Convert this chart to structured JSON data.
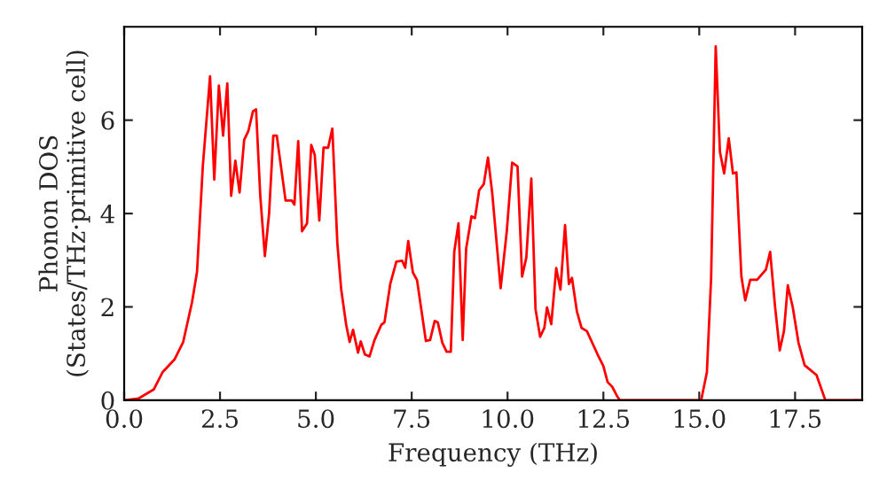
{
  "chart_data": {
    "type": "line",
    "xlabel": "Frequency (THz)",
    "ylabel": "Phonon DOS\n(States/THz·primitive cell)",
    "xlim": [
      0,
      19.25
    ],
    "ylim": [
      0,
      8
    ],
    "xticks": [
      {
        "value": 0,
        "label": "0.0"
      },
      {
        "value": 2.5,
        "label": "2.5"
      },
      {
        "value": 5,
        "label": "5.0"
      },
      {
        "value": 7.5,
        "label": "7.5"
      },
      {
        "value": 10,
        "label": "10.0"
      },
      {
        "value": 12.5,
        "label": "12.5"
      },
      {
        "value": 15,
        "label": "15.0"
      },
      {
        "value": 17.5,
        "label": "17.5"
      }
    ],
    "yticks": [
      0,
      2,
      4,
      6
    ],
    "grid": false,
    "marker": "none",
    "line_style": "solid",
    "series": [
      {
        "color": "#ff0000",
        "x": [
          0,
          0.38,
          0.77,
          1.0,
          1.31,
          1.54,
          1.77,
          1.9,
          2.05,
          2.24,
          2.35,
          2.47,
          2.58,
          2.69,
          2.79,
          2.9,
          3.01,
          3.13,
          3.24,
          3.36,
          3.44,
          3.55,
          3.67,
          3.78,
          3.89,
          3.98,
          4.21,
          4.37,
          4.44,
          4.54,
          4.64,
          4.77,
          4.88,
          4.97,
          5.09,
          5.2,
          5.32,
          5.43,
          5.56,
          5.66,
          5.79,
          5.88,
          5.97,
          6.1,
          6.17,
          6.28,
          6.4,
          6.53,
          6.71,
          6.79,
          6.94,
          7.1,
          7.25,
          7.33,
          7.41,
          7.53,
          7.64,
          7.87,
          7.98,
          8.1,
          8.18,
          8.3,
          8.41,
          8.52,
          8.61,
          8.72,
          8.83,
          8.92,
          9.06,
          9.15,
          9.26,
          9.38,
          9.49,
          9.6,
          9.82,
          9.98,
          10.12,
          10.26,
          10.38,
          10.49,
          10.62,
          10.73,
          10.85,
          10.96,
          11.03,
          11.14,
          11.27,
          11.38,
          11.5,
          11.6,
          11.68,
          11.81,
          11.93,
          12.07,
          12.35,
          12.5,
          12.61,
          12.73,
          12.85,
          12.93,
          15.05,
          15.2,
          15.31,
          15.43,
          15.54,
          15.65,
          15.77,
          15.88,
          15.97,
          16.1,
          16.2,
          16.33,
          16.51,
          16.74,
          16.85,
          16.98,
          17.1,
          17.21,
          17.31,
          17.44,
          17.59,
          17.75,
          18.06,
          18.29,
          19.2
        ],
        "values": [
          0,
          0.04,
          0.23,
          0.6,
          0.87,
          1.25,
          2.1,
          2.75,
          5.0,
          6.94,
          4.73,
          6.74,
          5.67,
          6.79,
          4.38,
          5.13,
          4.45,
          5.58,
          5.77,
          6.19,
          6.23,
          4.38,
          3.09,
          4.0,
          5.67,
          5.67,
          4.28,
          4.28,
          4.19,
          5.55,
          3.62,
          3.79,
          5.47,
          5.26,
          3.85,
          5.41,
          5.41,
          5.82,
          3.37,
          2.38,
          1.62,
          1.25,
          1.51,
          1.02,
          1.26,
          0.98,
          0.94,
          1.29,
          1.62,
          1.67,
          2.49,
          2.97,
          2.99,
          2.84,
          3.41,
          2.74,
          2.57,
          1.27,
          1.29,
          1.7,
          1.67,
          1.23,
          1.04,
          1.04,
          3.18,
          3.79,
          1.29,
          3.25,
          3.94,
          3.9,
          4.5,
          4.63,
          5.2,
          4.44,
          2.4,
          3.62,
          5.09,
          5.01,
          2.65,
          3.06,
          4.75,
          1.95,
          1.36,
          1.55,
          1.99,
          1.63,
          2.83,
          2.37,
          3.75,
          2.49,
          2.62,
          1.9,
          1.55,
          1.48,
          0.98,
          0.73,
          0.39,
          0.29,
          0.1,
          0,
          0,
          0.6,
          2.62,
          7.58,
          5.32,
          4.86,
          5.61,
          4.86,
          4.88,
          2.65,
          2.14,
          2.58,
          2.58,
          2.8,
          3.18,
          1.99,
          1.07,
          1.48,
          2.46,
          1.99,
          1.23,
          0.75,
          0.54,
          0,
          0
        ]
      }
    ]
  }
}
